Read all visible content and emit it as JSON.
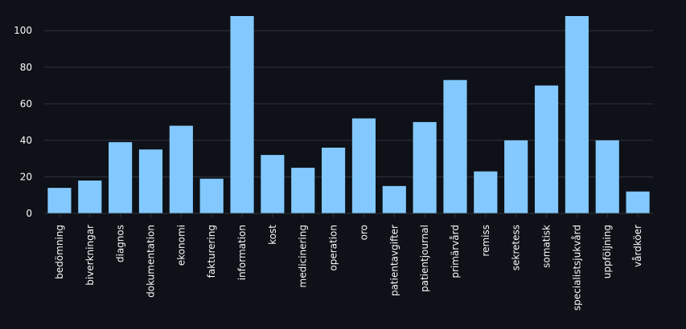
{
  "chart_data": {
    "type": "bar",
    "title": "",
    "xlabel": "",
    "ylabel": "",
    "categories": [
      "bedömning",
      "biverkningar",
      "diagnos",
      "dokumentation",
      "ekonomi",
      "fakturering",
      "information",
      "kost",
      "medicinering",
      "operation",
      "oro",
      "patientavgifter",
      "patientjournal",
      "primärvård",
      "remiss",
      "sekretess",
      "somatisk",
      "specialistsjukvård",
      "uppföljning",
      "vårdköer"
    ],
    "values": [
      14,
      18,
      39,
      35,
      48,
      19,
      108,
      32,
      25,
      36,
      52,
      15,
      50,
      73,
      23,
      40,
      70,
      108,
      40,
      12
    ],
    "ylim": [
      0,
      108
    ],
    "yticks": [
      0,
      20,
      40,
      60,
      80,
      100
    ],
    "grid": true,
    "colors": {
      "bar": "#83c9ff",
      "background": "#0e1117",
      "grid": "#31333f",
      "text": "#fafafa"
    }
  }
}
